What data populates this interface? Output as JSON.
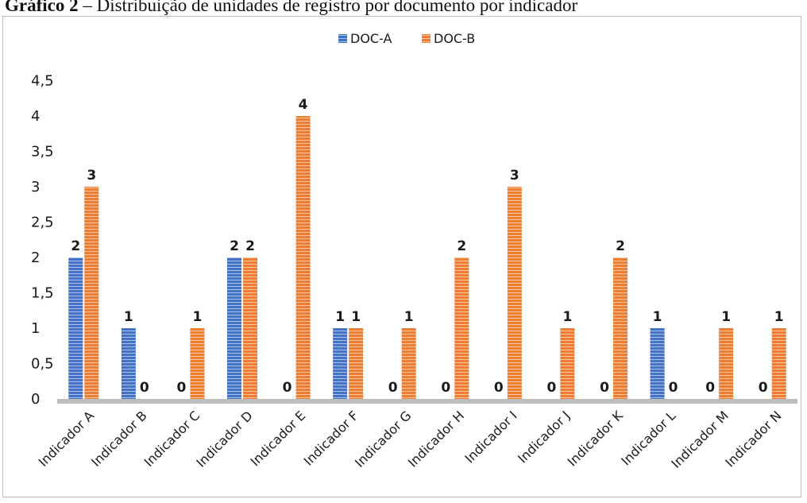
{
  "caption": {
    "label": "Gráfico 2",
    "text": " – Distribuição de unidades de registro por documento por indicador"
  },
  "chart_data": {
    "type": "bar",
    "categories": [
      "Indicador A",
      "Indicador B",
      "Indicador C",
      "Indicador D",
      "Indicador E",
      "Indicador F",
      "Indicador G",
      "Indicador H",
      "Indicador I",
      "Indicador J",
      "Indicador K",
      "Indicador L",
      "Indicador M",
      "Indicador N"
    ],
    "series": [
      {
        "name": "DOC-A",
        "color": "#4472c4",
        "values": [
          2,
          1,
          0,
          2,
          0,
          1,
          0,
          0,
          0,
          0,
          0,
          1,
          0,
          0
        ]
      },
      {
        "name": "DOC-B",
        "color": "#ed7d31",
        "values": [
          3,
          0,
          1,
          2,
          4,
          1,
          1,
          2,
          3,
          1,
          2,
          0,
          1,
          1
        ]
      }
    ],
    "yticks": [
      "0",
      "0,5",
      "1",
      "1,5",
      "2",
      "2,5",
      "3",
      "3,5",
      "4",
      "4,5"
    ],
    "ylim": [
      0,
      4.5
    ],
    "grid": false,
    "legend_position": "top-center",
    "data_labels": true
  }
}
